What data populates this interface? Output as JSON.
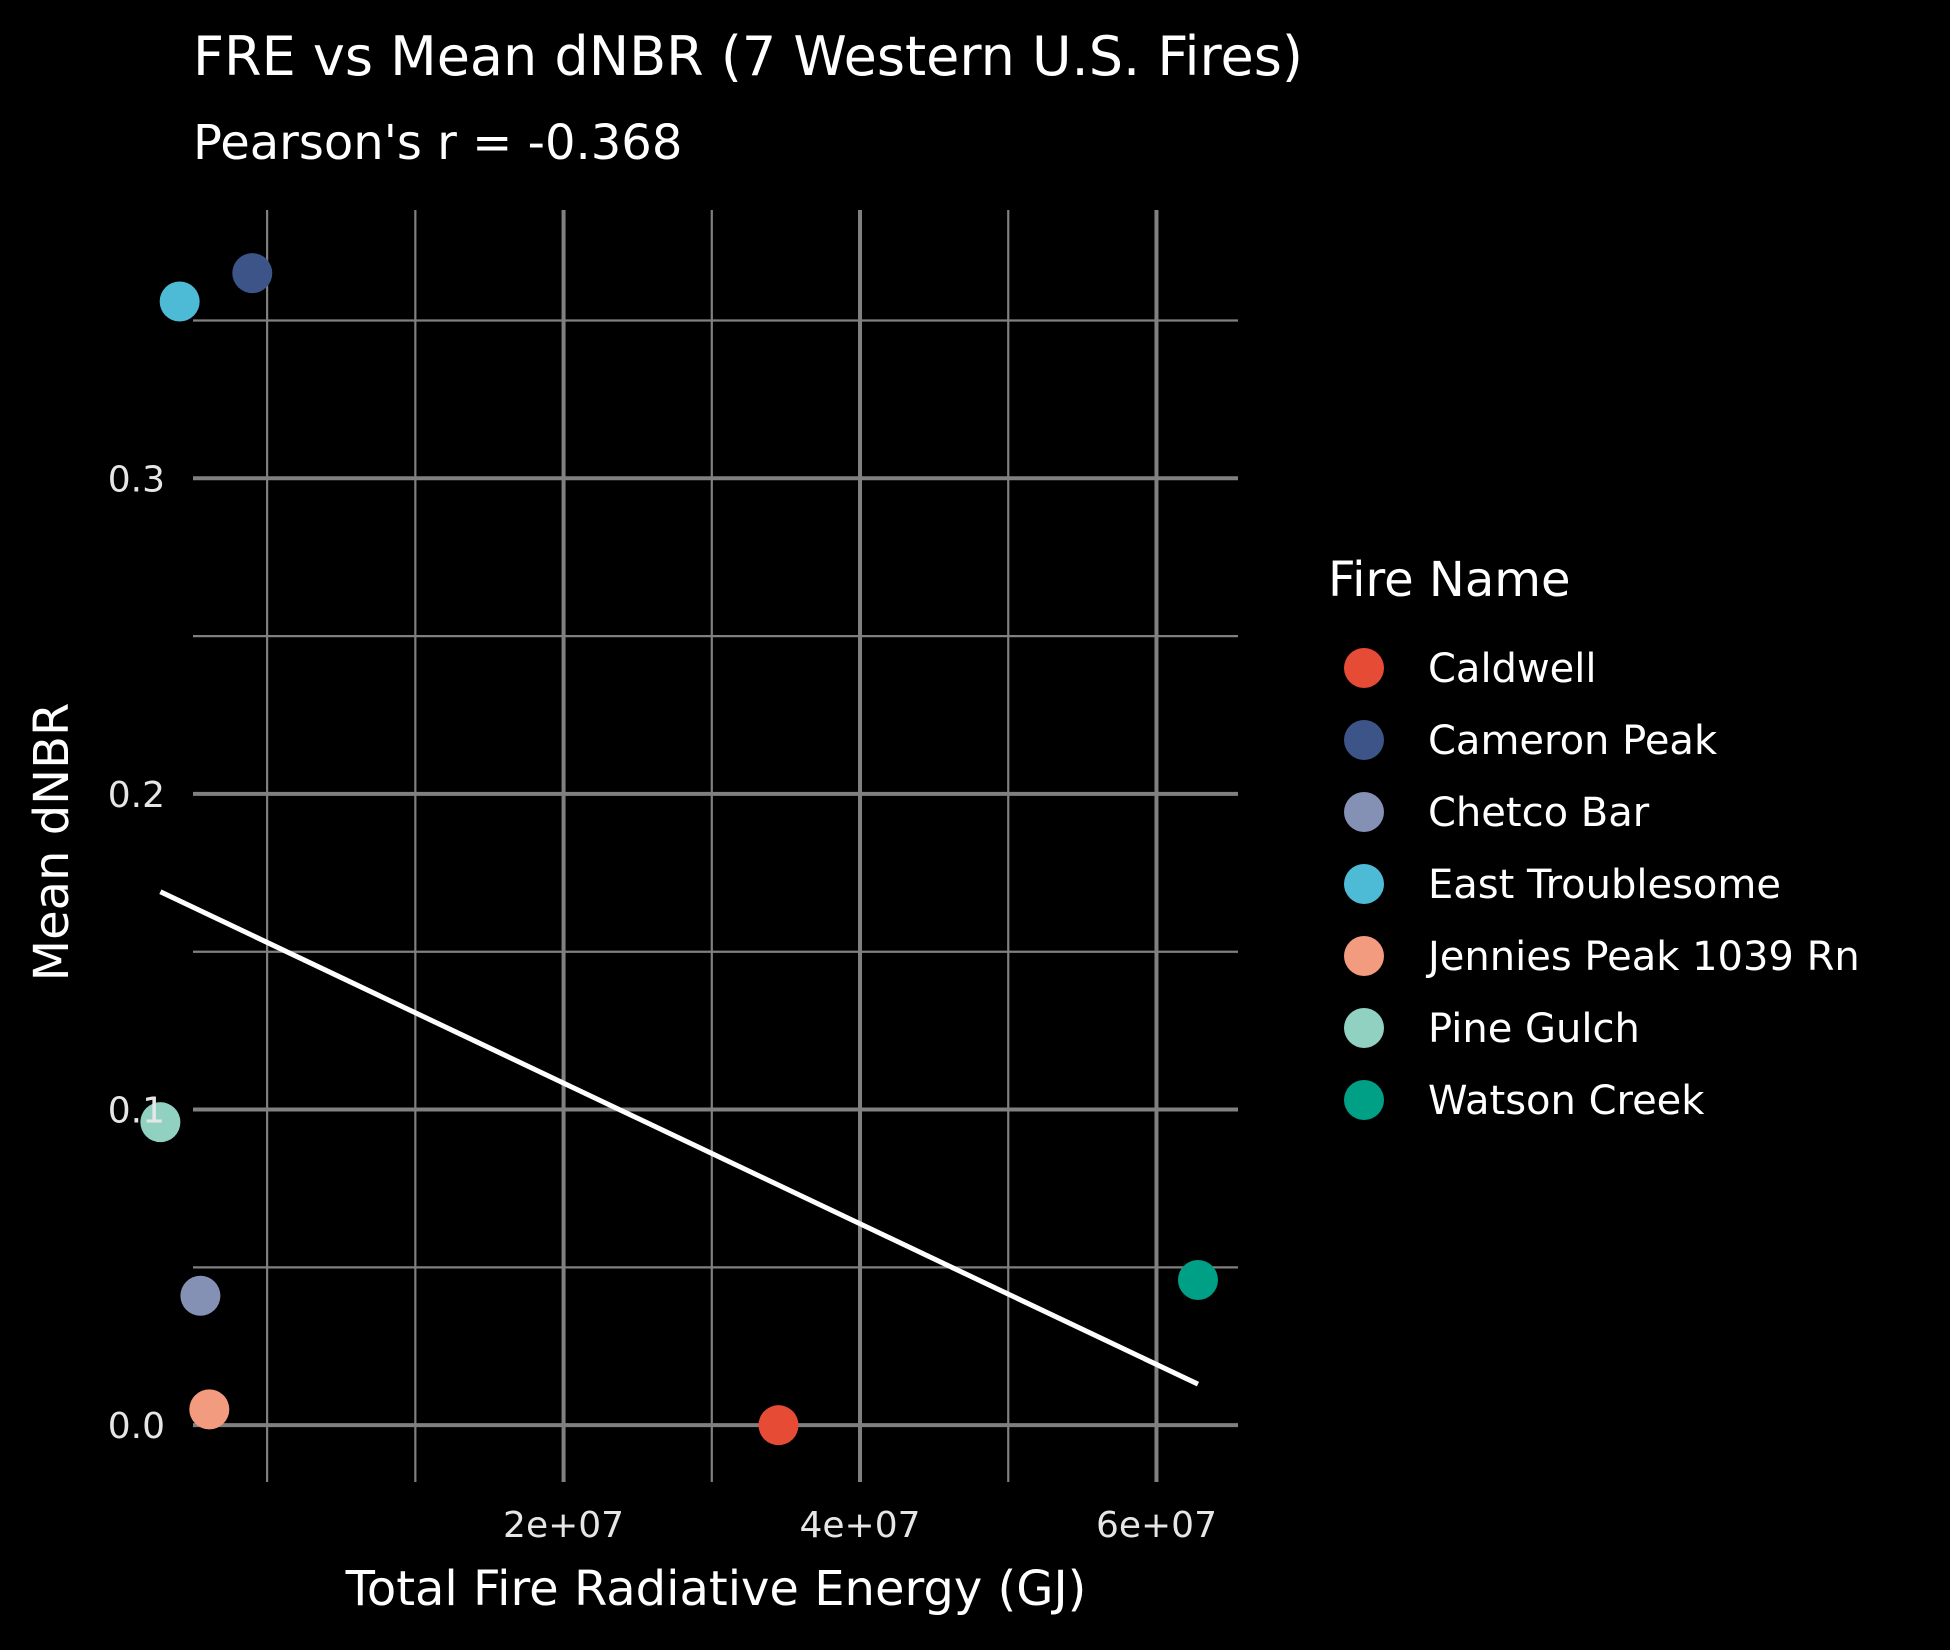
{
  "chart_data": {
    "type": "scatter",
    "title": "FRE vs Mean dNBR (7 Western U.S. Fires)",
    "subtitle": "Pearson's r = -0.368",
    "xlabel": "Total Fire Radiative Energy (GJ)",
    "ylabel": "Mean dNBR",
    "xlim": [
      -5000000,
      65500000
    ],
    "ylim": [
      -0.018,
      0.385
    ],
    "x_ticks": [
      20000000,
      40000000,
      60000000
    ],
    "x_tick_labels": [
      "2e+07",
      "4e+07",
      "6e+07"
    ],
    "x_minor_ticks": [
      0,
      10000000,
      30000000,
      50000000
    ],
    "y_ticks": [
      0.0,
      0.1,
      0.2,
      0.3
    ],
    "y_tick_labels": [
      "0.0",
      "0.1",
      "0.2",
      "0.3"
    ],
    "y_minor_ticks": [
      0.05,
      0.15,
      0.25,
      0.35
    ],
    "grid": true,
    "legend": {
      "title": "Fire Name",
      "position": "right"
    },
    "series": [
      {
        "name": "Caldwell",
        "color": "#E64B35",
        "x": 34500000,
        "y": 0.0
      },
      {
        "name": "Cameron Peak",
        "color": "#3C5488",
        "x": -1000000,
        "y": 0.365
      },
      {
        "name": "Chetco Bar",
        "color": "#8491B4",
        "x": -4500000,
        "y": 0.041
      },
      {
        "name": "East Troublesome",
        "color": "#4DBBD5",
        "x": -5900000,
        "y": 0.356
      },
      {
        "name": "Jennies Peak 1039 Rn",
        "color": "#F39B7F",
        "x": -3900000,
        "y": 0.005
      },
      {
        "name": "Pine Gulch",
        "color": "#91D1C2",
        "x": -7200000,
        "y": 0.096
      },
      {
        "name": "Watson Creek",
        "color": "#00A087",
        "x": 62800000,
        "y": 0.046
      }
    ],
    "trend_line": {
      "x": [
        -7200000,
        62800000
      ],
      "y": [
        0.169,
        0.013
      ],
      "color": "#ffffff"
    }
  }
}
